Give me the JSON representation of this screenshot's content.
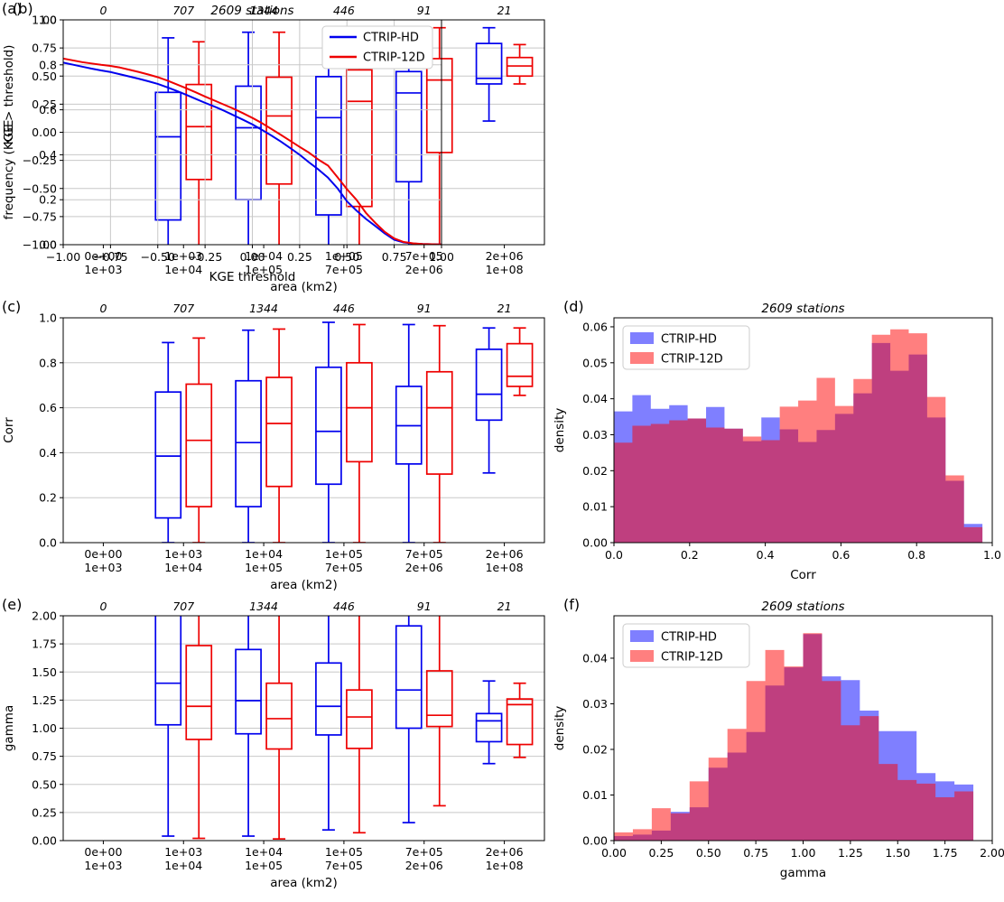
{
  "colors": {
    "blue": "#0000ee",
    "red": "#ee0000",
    "hist_blue": "#0000ff",
    "hist_red": "#ff0000",
    "grid": "#c8c8c8",
    "frame": "#000000",
    "legend_edge": "#cccccc"
  },
  "legend": {
    "entries": [
      "CTRIP-HD",
      "CTRIP-12D"
    ]
  },
  "chart_data": [
    {
      "id": "a",
      "panel_label": "(a)",
      "type": "boxplot",
      "side": "left",
      "title": "",
      "xlabel": "area (km2)",
      "ylabel": "KGE",
      "ylim": [
        -1,
        1
      ],
      "xlim": [
        0,
        6
      ],
      "yticks": [
        1.0,
        0.75,
        0.5,
        0.25,
        0.0,
        -0.25,
        -0.5,
        -0.75,
        -1.0
      ],
      "ytick_labels": [
        "1.00",
        "0.75",
        "0.50",
        "0.25",
        "0.00",
        "−0.25",
        "−0.50",
        "−0.75",
        "−1.00"
      ],
      "grid": {
        "x": false,
        "y": true
      },
      "categories": [
        [
          "0e+00",
          "1e+03"
        ],
        [
          "1e+03",
          "1e+04"
        ],
        [
          "1e+04",
          "1e+05"
        ],
        [
          "1e+05",
          "7e+05"
        ],
        [
          "7e+05",
          "2e+06"
        ],
        [
          "2e+06",
          "1e+08"
        ]
      ],
      "counts": [
        "0",
        "707",
        "1344",
        "446",
        "91",
        "21"
      ],
      "series": [
        {
          "name": "CTRIP-HD",
          "boxes": [
            null,
            [
              -1.1,
              -0.78,
              -0.04,
              0.355,
              0.84
            ],
            [
              -1.1,
              -0.6,
              0.04,
              0.41,
              0.89
            ],
            [
              -1.1,
              -0.735,
              0.13,
              0.495,
              0.905
            ],
            [
              -1.1,
              -0.44,
              0.35,
              0.54,
              0.885
            ],
            [
              0.1,
              0.43,
              0.48,
              0.79,
              0.93
            ]
          ]
        },
        {
          "name": "CTRIP-12D",
          "boxes": [
            null,
            [
              -1.1,
              -0.42,
              0.05,
              0.425,
              0.805
            ],
            [
              -1.1,
              -0.46,
              0.145,
              0.49,
              0.89
            ],
            [
              -1.1,
              -0.66,
              0.275,
              0.555,
              0.915
            ],
            [
              -1.1,
              -0.18,
              0.465,
              0.655,
              0.93
            ],
            [
              0.43,
              0.5,
              0.59,
              0.665,
              0.78
            ]
          ]
        }
      ]
    },
    {
      "id": "b",
      "panel_label": "(b)",
      "type": "line",
      "side": "right",
      "title": "2609 stations",
      "xlabel": "KGE threshold",
      "ylabel": "frequency (KGE > threshold)",
      "xlim": [
        -1,
        1
      ],
      "ylim": [
        0,
        1
      ],
      "xticks": [
        -1.0,
        -0.75,
        -0.5,
        -0.25,
        0.0,
        0.25,
        0.5,
        0.75,
        1.0
      ],
      "xtick_labels": [
        "−1.00",
        "−0.75",
        "−0.50",
        "−0.25",
        "0.00",
        "0.25",
        "0.50",
        "0.75",
        "1.00"
      ],
      "yticks": [
        1.0,
        0.8,
        0.6,
        0.4,
        0.2,
        0.0
      ],
      "ytick_labels": [
        "1.0",
        "0.8",
        "0.6",
        "0.4",
        "0.2",
        "0.0"
      ],
      "grid": {
        "x": true,
        "y": true
      },
      "legend": "line",
      "x": [
        -1,
        -0.95,
        -0.9,
        -0.85,
        -0.8,
        -0.75,
        -0.7,
        -0.65,
        -0.6,
        -0.55,
        -0.5,
        -0.45,
        -0.4,
        -0.35,
        -0.3,
        -0.25,
        -0.2,
        -0.15,
        -0.1,
        -0.05,
        0,
        0.05,
        0.1,
        0.15,
        0.2,
        0.25,
        0.3,
        0.35,
        0.4,
        0.45,
        0.5,
        0.55,
        0.6,
        0.65,
        0.7,
        0.75,
        0.8,
        0.85,
        0.9,
        0.95,
        1.0
      ],
      "series": [
        {
          "name": "CTRIP-HD",
          "y": [
            0.81,
            0.801,
            0.792,
            0.783,
            0.775,
            0.768,
            0.758,
            0.748,
            0.738,
            0.727,
            0.715,
            0.7,
            0.684,
            0.667,
            0.649,
            0.631,
            0.614,
            0.596,
            0.576,
            0.556,
            0.535,
            0.511,
            0.486,
            0.459,
            0.43,
            0.4,
            0.366,
            0.334,
            0.298,
            0.251,
            0.193,
            0.152,
            0.115,
            0.083,
            0.05,
            0.022,
            0.01,
            0.005,
            0.003,
            0.002,
            0.001
          ]
        },
        {
          "name": "CTRIP-12D",
          "y": [
            0.828,
            0.82,
            0.812,
            0.806,
            0.8,
            0.795,
            0.788,
            0.778,
            0.768,
            0.757,
            0.745,
            0.73,
            0.713,
            0.696,
            0.678,
            0.659,
            0.641,
            0.623,
            0.605,
            0.585,
            0.564,
            0.541,
            0.515,
            0.489,
            0.462,
            0.435,
            0.409,
            0.378,
            0.352,
            0.3,
            0.247,
            0.2,
            0.142,
            0.097,
            0.057,
            0.028,
            0.012,
            0.006,
            0.003,
            0.002,
            0.001
          ]
        }
      ]
    },
    {
      "id": "c",
      "panel_label": "(c)",
      "type": "boxplot",
      "side": "left",
      "title": "",
      "xlabel": "area (km2)",
      "ylabel": "Corr",
      "ylim": [
        0,
        1
      ],
      "xlim": [
        0,
        6
      ],
      "yticks": [
        1.0,
        0.8,
        0.6,
        0.4,
        0.2,
        0.0
      ],
      "ytick_labels": [
        "1.0",
        "0.8",
        "0.6",
        "0.4",
        "0.2",
        "0.0"
      ],
      "grid": {
        "x": false,
        "y": true
      },
      "categories": [
        [
          "0e+00",
          "1e+03"
        ],
        [
          "1e+03",
          "1e+04"
        ],
        [
          "1e+04",
          "1e+05"
        ],
        [
          "1e+05",
          "7e+05"
        ],
        [
          "7e+05",
          "2e+06"
        ],
        [
          "2e+06",
          "1e+08"
        ]
      ],
      "counts": [
        "0",
        "707",
        "1344",
        "446",
        "91",
        "21"
      ],
      "series": [
        {
          "name": "CTRIP-HD",
          "boxes": [
            null,
            [
              0.0,
              0.11,
              0.385,
              0.67,
              0.89
            ],
            [
              0.0,
              0.16,
              0.445,
              0.72,
              0.945
            ],
            [
              0.0,
              0.26,
              0.495,
              0.78,
              0.98
            ],
            [
              0.0,
              0.35,
              0.52,
              0.695,
              0.97
            ],
            [
              0.31,
              0.545,
              0.66,
              0.86,
              0.955
            ]
          ]
        },
        {
          "name": "CTRIP-12D",
          "boxes": [
            null,
            [
              0.0,
              0.16,
              0.455,
              0.705,
              0.91
            ],
            [
              0.0,
              0.25,
              0.53,
              0.735,
              0.95
            ],
            [
              0.0,
              0.36,
              0.6,
              0.8,
              0.97
            ],
            [
              0.0,
              0.305,
              0.6,
              0.76,
              0.965
            ],
            [
              0.655,
              0.695,
              0.74,
              0.885,
              0.955
            ]
          ]
        }
      ]
    },
    {
      "id": "d",
      "panel_label": "(d)",
      "type": "histogram",
      "side": "right",
      "title": "2609 stations",
      "xlabel": "Corr",
      "ylabel": "density",
      "xlim": [
        0,
        1
      ],
      "ylim": [
        0,
        0.0625
      ],
      "xticks": [
        0.0,
        0.2,
        0.4,
        0.6,
        0.8,
        1.0
      ],
      "xtick_labels": [
        "0.0",
        "0.2",
        "0.4",
        "0.6",
        "0.8",
        "1.0"
      ],
      "yticks": [
        0.06,
        0.05,
        0.04,
        0.03,
        0.02,
        0.01,
        0.0
      ],
      "ytick_labels": [
        "0.06",
        "0.05",
        "0.04",
        "0.03",
        "0.02",
        "0.01",
        "0.00"
      ],
      "grid": {
        "x": false,
        "y": false
      },
      "legend": "patch",
      "bin_start": 0.0,
      "bin_width": 0.0487,
      "series": [
        {
          "name": "CTRIP-HD",
          "values": [
            0.0365,
            0.041,
            0.0372,
            0.0382,
            0.0345,
            0.0377,
            0.0317,
            0.0282,
            0.0348,
            0.0315,
            0.028,
            0.0313,
            0.0358,
            0.0415,
            0.0555,
            0.0478,
            0.0523,
            0.0348,
            0.0172,
            0.0052
          ]
        },
        {
          "name": "CTRIP-12D",
          "values": [
            0.0278,
            0.0325,
            0.033,
            0.034,
            0.0345,
            0.032,
            0.0317,
            0.0295,
            0.0285,
            0.0378,
            0.0395,
            0.0458,
            0.038,
            0.0455,
            0.0578,
            0.0593,
            0.0582,
            0.0405,
            0.0187,
            0.0043
          ]
        }
      ]
    },
    {
      "id": "e",
      "panel_label": "(e)",
      "type": "boxplot",
      "side": "left",
      "title": "",
      "xlabel": "area (km2)",
      "ylabel": "gamma",
      "ylim": [
        0,
        2
      ],
      "xlim": [
        0,
        6
      ],
      "yticks": [
        2.0,
        1.75,
        1.5,
        1.25,
        1.0,
        0.75,
        0.5,
        0.25,
        0.0
      ],
      "ytick_labels": [
        "2.00",
        "1.75",
        "1.50",
        "1.25",
        "1.00",
        "0.75",
        "0.50",
        "0.25",
        "0.00"
      ],
      "grid": {
        "x": false,
        "y": true
      },
      "categories": [
        [
          "0e+00",
          "1e+03"
        ],
        [
          "1e+03",
          "1e+04"
        ],
        [
          "1e+04",
          "1e+05"
        ],
        [
          "1e+05",
          "7e+05"
        ],
        [
          "7e+05",
          "2e+06"
        ],
        [
          "2e+06",
          "1e+08"
        ]
      ],
      "counts": [
        "0",
        "707",
        "1344",
        "446",
        "91",
        "21"
      ],
      "series": [
        {
          "name": "CTRIP-HD",
          "boxes": [
            null,
            [
              0.04,
              1.03,
              1.4,
              2.05,
              2.1
            ],
            [
              0.04,
              0.95,
              1.245,
              1.7,
              2.1
            ],
            [
              0.095,
              0.94,
              1.195,
              1.58,
              2.1
            ],
            [
              0.16,
              1.0,
              1.34,
              1.91,
              2.1
            ],
            [
              0.685,
              0.88,
              1.065,
              1.13,
              1.42
            ]
          ]
        },
        {
          "name": "CTRIP-12D",
          "boxes": [
            null,
            [
              0.02,
              0.9,
              1.195,
              1.735,
              2.1
            ],
            [
              0.015,
              0.815,
              1.085,
              1.4,
              2.1
            ],
            [
              0.07,
              0.82,
              1.1,
              1.34,
              2.1
            ],
            [
              0.31,
              1.015,
              1.115,
              1.51,
              2.1
            ],
            [
              0.74,
              0.855,
              1.21,
              1.26,
              1.4
            ]
          ]
        }
      ]
    },
    {
      "id": "f",
      "panel_label": "(f)",
      "type": "histogram",
      "side": "right",
      "title": "2609 stations",
      "xlabel": "gamma",
      "ylabel": "density",
      "xlim": [
        0,
        2
      ],
      "ylim": [
        0,
        0.0493
      ],
      "xticks": [
        0.0,
        0.25,
        0.5,
        0.75,
        1.0,
        1.25,
        1.5,
        1.75,
        2.0
      ],
      "xtick_labels": [
        "0.00",
        "0.25",
        "0.50",
        "0.75",
        "1.00",
        "1.25",
        "1.50",
        "1.75",
        "2.00"
      ],
      "yticks": [
        0.04,
        0.03,
        0.02,
        0.01,
        0.0
      ],
      "ytick_labels": [
        "0.04",
        "0.03",
        "0.02",
        "0.01",
        "0.00"
      ],
      "grid": {
        "x": false,
        "y": false
      },
      "legend": "patch",
      "bin_start": 0.0,
      "bin_width": 0.1,
      "series": [
        {
          "name": "CTRIP-HD",
          "values": [
            0.001,
            0.0013,
            0.0022,
            0.0063,
            0.0073,
            0.016,
            0.0193,
            0.0238,
            0.034,
            0.038,
            0.0453,
            0.036,
            0.0352,
            0.0285,
            0.024,
            0.024,
            0.0148,
            0.013,
            0.0123
          ]
        },
        {
          "name": "CTRIP-12D",
          "values": [
            0.0018,
            0.0025,
            0.0071,
            0.006,
            0.013,
            0.0182,
            0.0245,
            0.035,
            0.0418,
            0.0382,
            0.0455,
            0.035,
            0.0253,
            0.0273,
            0.0168,
            0.0133,
            0.0125,
            0.0095,
            0.0108
          ]
        }
      ]
    }
  ]
}
